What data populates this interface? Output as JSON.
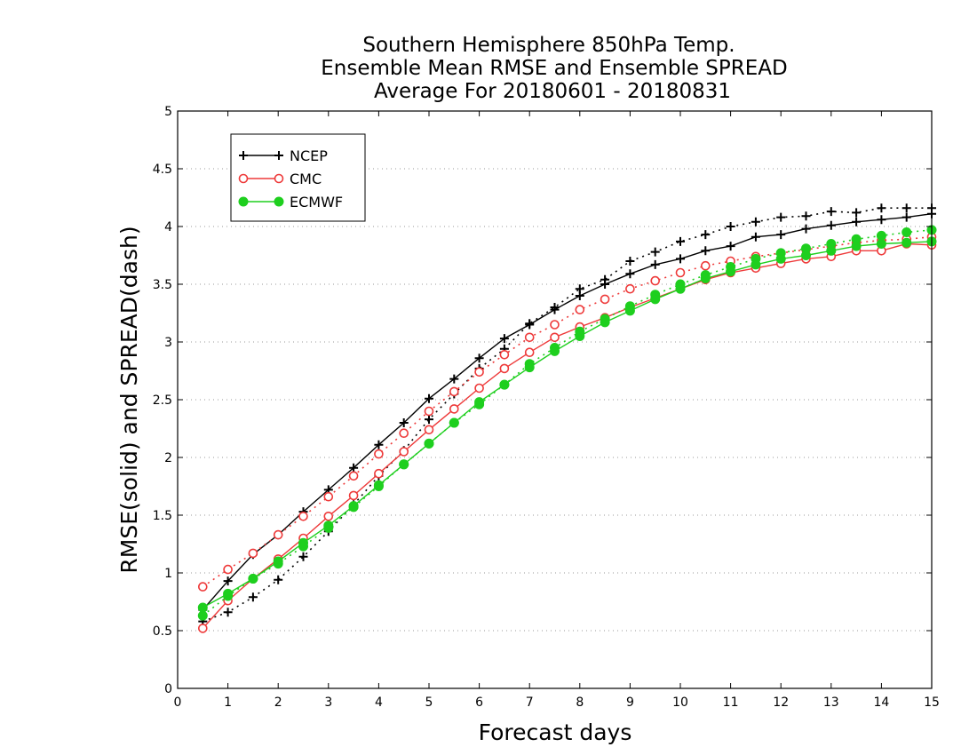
{
  "chart_data": {
    "type": "line",
    "title": [
      "Southern Hemisphere 850hPa Temp.",
      "Ensemble Mean RMSE and Ensemble SPREAD",
      "Average For 20180601 - 20180831"
    ],
    "xlabel": "Forecast days",
    "ylabel": "RMSE(solid) and SPREAD(dash)",
    "xlim": [
      0,
      15
    ],
    "ylim": [
      0,
      5
    ],
    "x_ticks": [
      "0",
      "1",
      "2",
      "3",
      "4",
      "5",
      "6",
      "7",
      "8",
      "9",
      "10",
      "11",
      "12",
      "13",
      "14",
      "15"
    ],
    "y_ticks": [
      "0",
      "0.5",
      "1",
      "1.5",
      "2",
      "2.5",
      "3",
      "3.5",
      "4",
      "4.5",
      "5"
    ],
    "grid": "horizontal dotted",
    "legend_position": "top-left",
    "x": [
      0.5,
      1,
      1.5,
      2,
      2.5,
      3,
      3.5,
      4,
      4.5,
      5,
      5.5,
      6,
      6.5,
      7,
      7.5,
      8,
      8.5,
      9,
      9.5,
      10,
      10.5,
      11,
      11.5,
      12,
      12.5,
      13,
      13.5,
      14,
      14.5,
      15
    ],
    "series": [
      {
        "name": "NCEP",
        "color": "#000000",
        "marker": "plus",
        "rmse": [
          0.68,
          0.93,
          1.16,
          1.33,
          1.53,
          1.72,
          1.91,
          2.11,
          2.3,
          2.51,
          2.68,
          2.86,
          3.03,
          3.15,
          3.28,
          3.4,
          3.5,
          3.59,
          3.67,
          3.72,
          3.79,
          3.83,
          3.91,
          3.93,
          3.98,
          4.01,
          4.04,
          4.06,
          4.08,
          4.11
        ],
        "spread": [
          0.58,
          0.66,
          0.79,
          0.94,
          1.14,
          1.36,
          1.59,
          1.84,
          2.06,
          2.33,
          2.55,
          2.77,
          2.94,
          3.16,
          3.3,
          3.46,
          3.54,
          3.7,
          3.78,
          3.87,
          3.93,
          4.0,
          4.04,
          4.08,
          4.09,
          4.13,
          4.12,
          4.16,
          4.16,
          4.16
        ]
      },
      {
        "name": "CMC",
        "color": "#ee3a3a",
        "marker": "open-circle",
        "rmse": [
          0.52,
          0.76,
          0.95,
          1.12,
          1.3,
          1.49,
          1.67,
          1.86,
          2.05,
          2.24,
          2.42,
          2.6,
          2.77,
          2.91,
          3.04,
          3.13,
          3.21,
          3.3,
          3.38,
          3.46,
          3.54,
          3.6,
          3.64,
          3.68,
          3.72,
          3.74,
          3.79,
          3.79,
          3.85,
          3.84
        ],
        "spread": [
          0.88,
          1.03,
          1.17,
          1.33,
          1.49,
          1.66,
          1.84,
          2.03,
          2.21,
          2.4,
          2.57,
          2.74,
          2.89,
          3.04,
          3.15,
          3.28,
          3.37,
          3.46,
          3.53,
          3.6,
          3.66,
          3.7,
          3.74,
          3.77,
          3.8,
          3.83,
          3.86,
          3.88,
          3.89,
          3.91
        ]
      },
      {
        "name": "ECMWF",
        "color": "#1ecf1e",
        "marker": "filled-circle",
        "rmse": [
          0.7,
          0.82,
          0.95,
          1.1,
          1.26,
          1.41,
          1.58,
          1.76,
          1.94,
          2.12,
          2.3,
          2.48,
          2.63,
          2.78,
          2.92,
          3.05,
          3.17,
          3.27,
          3.37,
          3.46,
          3.55,
          3.61,
          3.67,
          3.72,
          3.75,
          3.79,
          3.83,
          3.85,
          3.86,
          3.87
        ],
        "spread": [
          0.63,
          0.8,
          0.95,
          1.08,
          1.23,
          1.39,
          1.57,
          1.75,
          1.94,
          2.12,
          2.3,
          2.46,
          2.63,
          2.81,
          2.95,
          3.09,
          3.2,
          3.31,
          3.41,
          3.5,
          3.58,
          3.65,
          3.72,
          3.77,
          3.81,
          3.85,
          3.89,
          3.92,
          3.95,
          3.97
        ]
      }
    ]
  }
}
